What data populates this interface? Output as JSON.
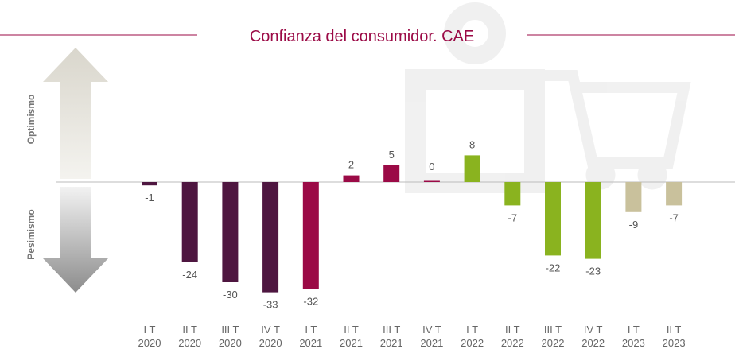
{
  "chart_data": {
    "type": "bar",
    "title": "Confianza del consumidor. CAE",
    "side_labels": [
      "Optimismo",
      "Pesimismo"
    ],
    "categories": [
      "I T 2020",
      "II T 2020",
      "III T 2020",
      "IV T 2020",
      "I T 2021",
      "II T 2021",
      "III T 2021",
      "IV T 2021",
      "I T 2022",
      "II T 2022",
      "III T 2022",
      "IV T 2022",
      "I T 2023",
      "II T 2023"
    ],
    "values": [
      -1,
      -24,
      -30,
      -33,
      -32,
      2,
      5,
      0,
      8,
      -7,
      -22,
      -23,
      -9,
      -7
    ],
    "colors": [
      "#4e1640",
      "#4e1640",
      "#4e1640",
      "#4e1640",
      "#9b0a46",
      "#9b0a46",
      "#9b0a46",
      "#9b0a46",
      "#8ab31f",
      "#8ab31f",
      "#8ab31f",
      "#8ab31f",
      "#c9c19c",
      "#c9c19c"
    ]
  }
}
